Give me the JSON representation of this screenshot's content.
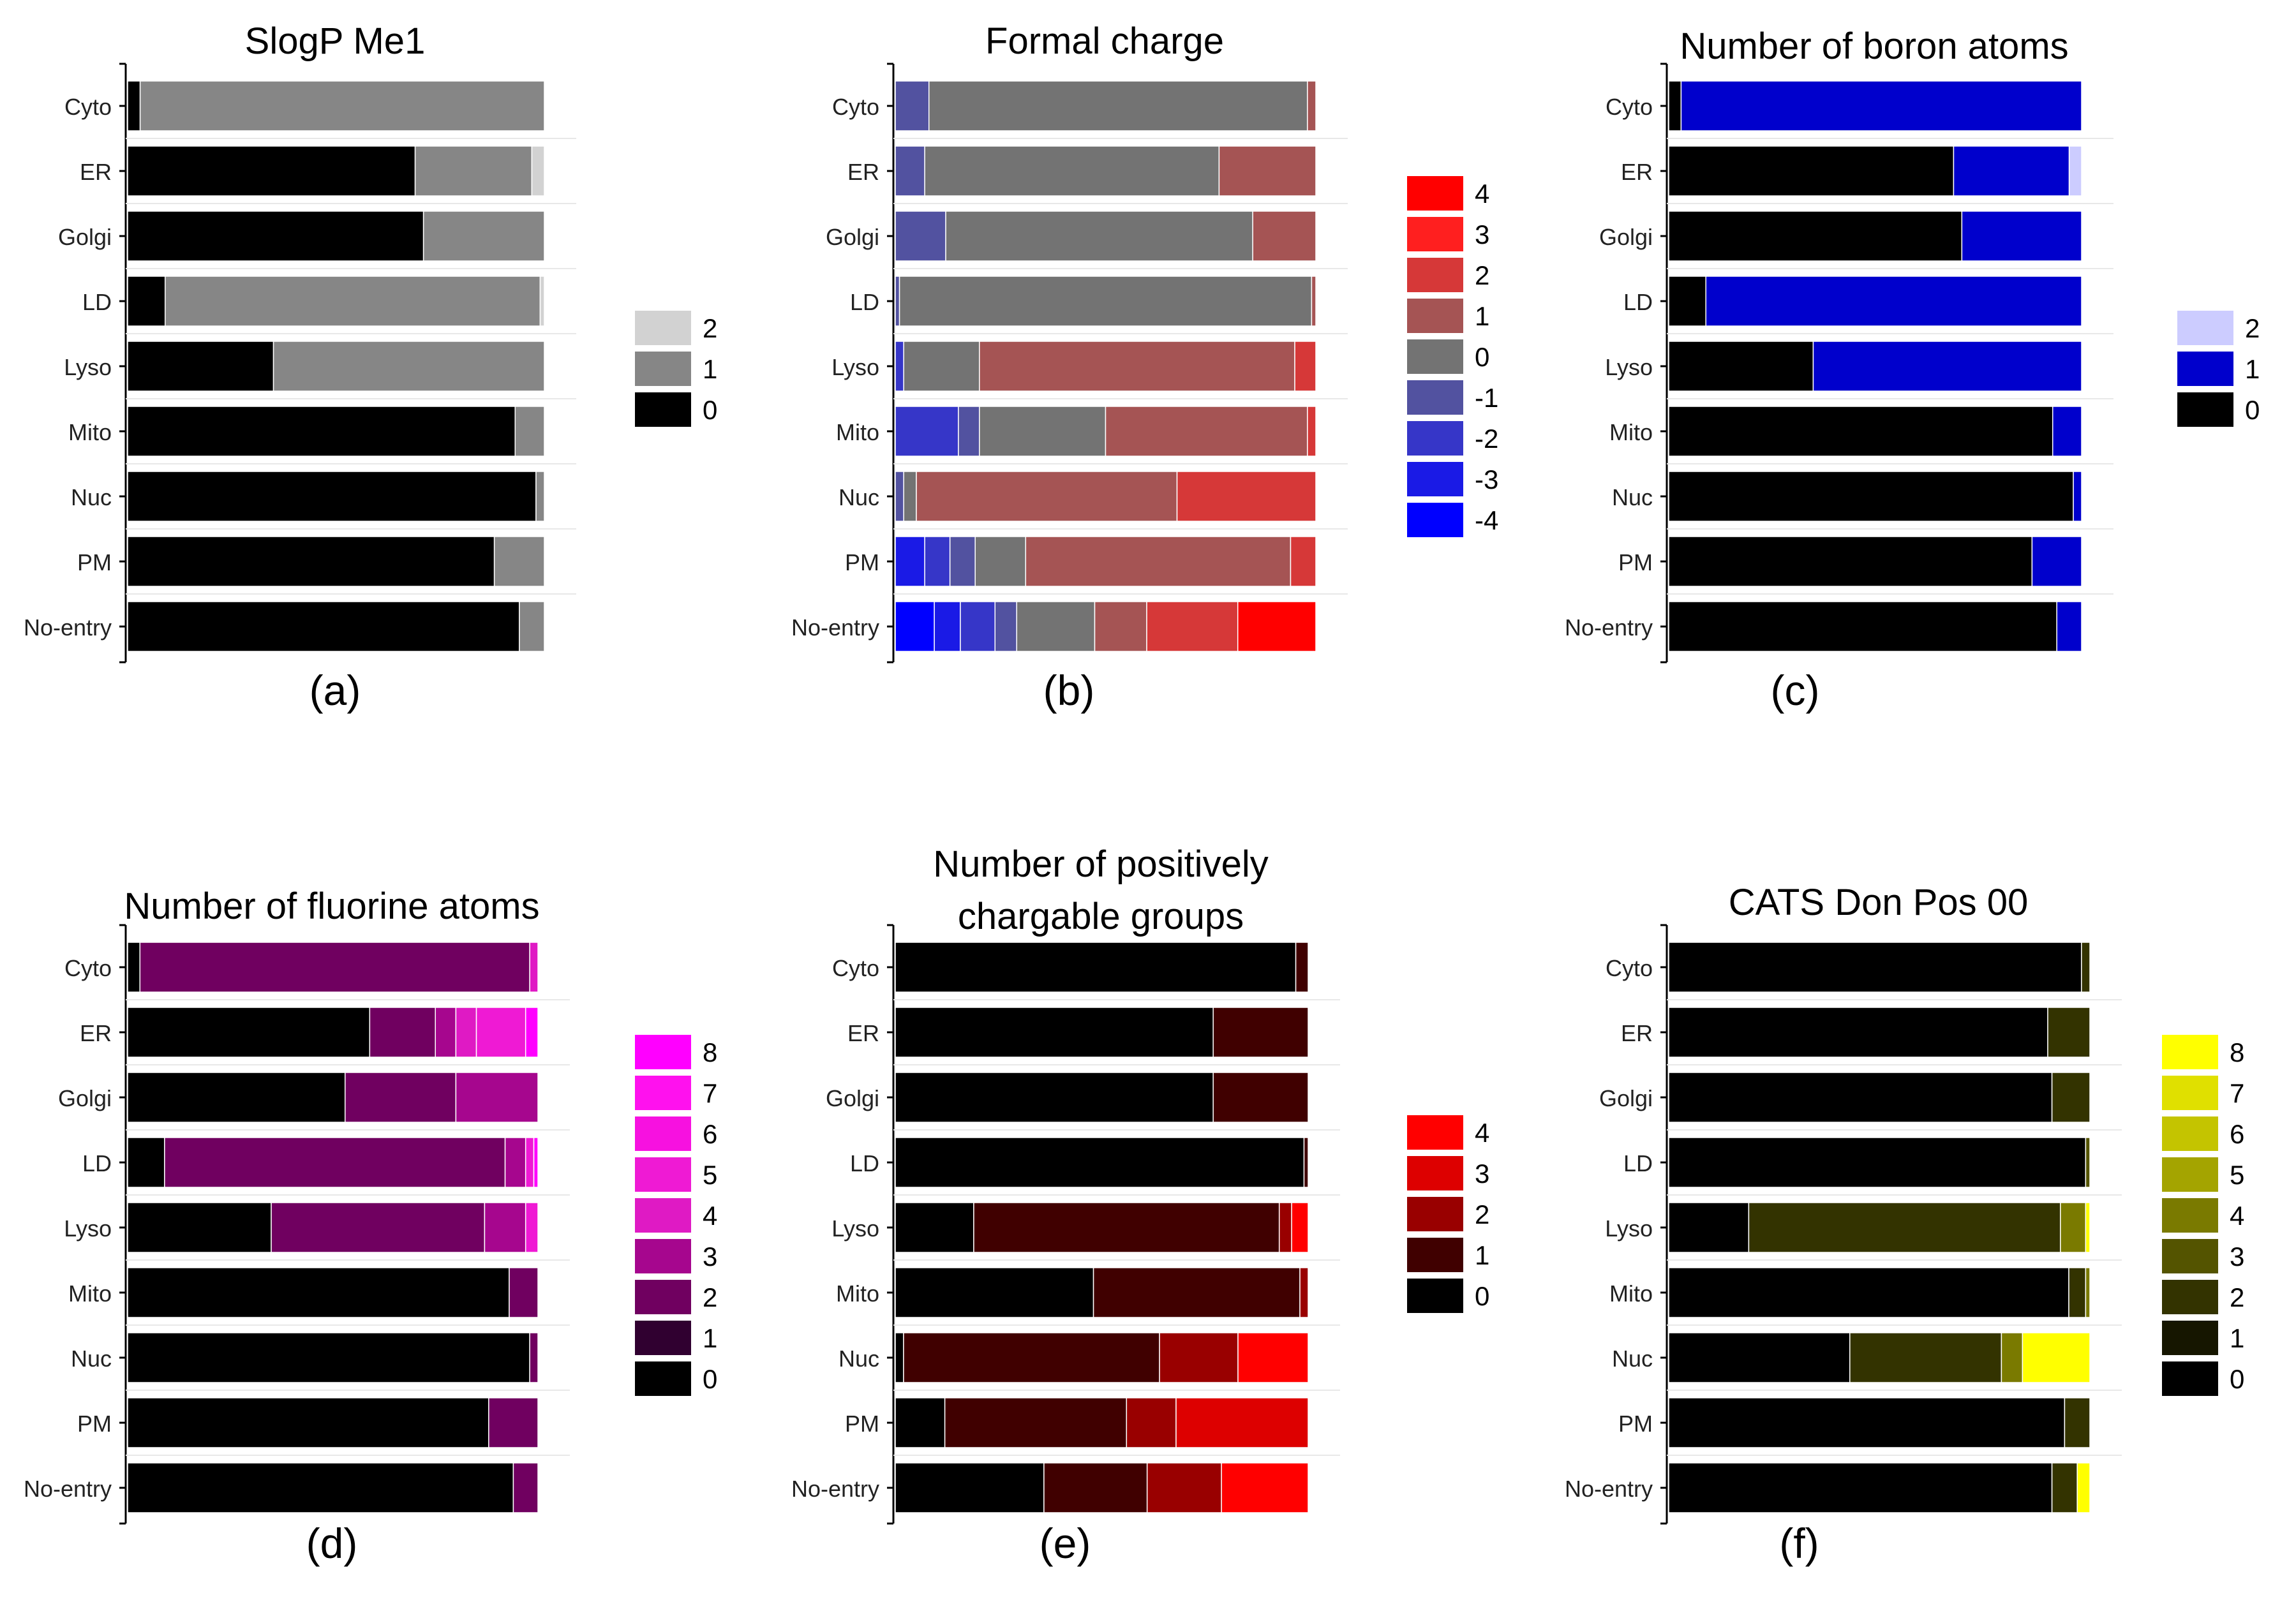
{
  "chart_data": [
    {
      "type": "bar",
      "stacked": true,
      "orientation": "horizontal",
      "title": "SlogP Me1",
      "caption": "(a)",
      "categories": [
        "Cyto",
        "ER",
        "Golgi",
        "LD",
        "Lyso",
        "Mito",
        "Nuc",
        "PM",
        "No-entry"
      ],
      "segments": [
        [
          [
            0,
            0.03
          ],
          [
            1,
            0.97
          ]
        ],
        [
          [
            0,
            0.69
          ],
          [
            1,
            0.28
          ],
          [
            2,
            0.03
          ]
        ],
        [
          [
            0,
            0.71
          ],
          [
            1,
            0.29
          ]
        ],
        [
          [
            0,
            0.09
          ],
          [
            1,
            0.9
          ],
          [
            2,
            0.01
          ]
        ],
        [
          [
            0,
            0.35
          ],
          [
            1,
            0.65
          ]
        ],
        [
          [
            0,
            0.93
          ],
          [
            1,
            0.07
          ]
        ],
        [
          [
            0,
            0.98
          ],
          [
            1,
            0.02
          ]
        ],
        [
          [
            0,
            0.88
          ],
          [
            1,
            0.12
          ]
        ],
        [
          [
            0,
            0.94
          ],
          [
            1,
            0.06
          ]
        ]
      ],
      "legend": [
        {
          "label": "2",
          "color": "#d2d2d2"
        },
        {
          "label": "1",
          "color": "#868686"
        },
        {
          "label": "0",
          "color": "#000000"
        }
      ]
    },
    {
      "type": "bar",
      "stacked": true,
      "orientation": "horizontal",
      "title": "Formal charge",
      "caption": "(b)",
      "categories": [
        "Cyto",
        "ER",
        "Golgi",
        "LD",
        "Lyso",
        "Mito",
        "Nuc",
        "PM",
        "No-entry"
      ],
      "segments": [
        [
          [
            -1,
            0.08
          ],
          [
            0,
            0.9
          ],
          [
            1,
            0.02
          ]
        ],
        [
          [
            -1,
            0.07
          ],
          [
            0,
            0.7
          ],
          [
            1,
            0.23
          ]
        ],
        [
          [
            -1,
            0.12
          ],
          [
            0,
            0.73
          ],
          [
            1,
            0.15
          ]
        ],
        [
          [
            -1,
            0.01
          ],
          [
            0,
            0.98
          ],
          [
            1,
            0.01
          ]
        ],
        [
          [
            -2,
            0.02
          ],
          [
            0,
            0.18
          ],
          [
            1,
            0.75
          ],
          [
            2,
            0.05
          ]
        ],
        [
          [
            -2,
            0.15
          ],
          [
            -1,
            0.05
          ],
          [
            0,
            0.3
          ],
          [
            1,
            0.48
          ],
          [
            2,
            0.02
          ]
        ],
        [
          [
            -1,
            0.02
          ],
          [
            0,
            0.03
          ],
          [
            1,
            0.62
          ],
          [
            2,
            0.33
          ]
        ],
        [
          [
            -3,
            0.07
          ],
          [
            -2,
            0.06
          ],
          [
            -1,
            0.06
          ],
          [
            0,
            0.12
          ],
          [
            1,
            0.63
          ],
          [
            2,
            0.06
          ]
        ],
        [
          [
            -4,
            0.09
          ],
          [
            -3,
            0.06
          ],
          [
            -2,
            0.08
          ],
          [
            -1,
            0.05
          ],
          [
            0,
            0.18
          ],
          [
            1,
            0.12
          ],
          [
            2,
            0.21
          ],
          [
            4,
            0.18
          ]
        ]
      ],
      "legend": [
        {
          "label": "4",
          "color": "#ff0000"
        },
        {
          "label": "3",
          "color": "#ff1f1f"
        },
        {
          "label": "2",
          "color": "#d63838"
        },
        {
          "label": "1",
          "color": "#a55454"
        },
        {
          "label": "0",
          "color": "#737373"
        },
        {
          "label": "-1",
          "color": "#5252a0"
        },
        {
          "label": "-2",
          "color": "#3636c8"
        },
        {
          "label": "-3",
          "color": "#1a1ae6"
        },
        {
          "label": "-4",
          "color": "#0000ff"
        }
      ]
    },
    {
      "type": "bar",
      "stacked": true,
      "orientation": "horizontal",
      "title": "Number of boron atoms",
      "caption": "(c)",
      "categories": [
        "Cyto",
        "ER",
        "Golgi",
        "LD",
        "Lyso",
        "Mito",
        "Nuc",
        "PM",
        "No-entry"
      ],
      "segments": [
        [
          [
            0,
            0.03
          ],
          [
            1,
            0.97
          ]
        ],
        [
          [
            0,
            0.69
          ],
          [
            1,
            0.28
          ],
          [
            2,
            0.03
          ]
        ],
        [
          [
            0,
            0.71
          ],
          [
            1,
            0.29
          ]
        ],
        [
          [
            0,
            0.09
          ],
          [
            1,
            0.91
          ]
        ],
        [
          [
            0,
            0.35
          ],
          [
            1,
            0.65
          ]
        ],
        [
          [
            0,
            0.93
          ],
          [
            1,
            0.07
          ]
        ],
        [
          [
            0,
            0.98
          ],
          [
            1,
            0.02
          ]
        ],
        [
          [
            0,
            0.88
          ],
          [
            1,
            0.12
          ]
        ],
        [
          [
            0,
            0.94
          ],
          [
            1,
            0.06
          ]
        ]
      ],
      "legend": [
        {
          "label": "2",
          "color": "#ccccff"
        },
        {
          "label": "1",
          "color": "#0000cc"
        },
        {
          "label": "0",
          "color": "#000000"
        }
      ]
    },
    {
      "type": "bar",
      "stacked": true,
      "orientation": "horizontal",
      "title": "Number of fluorine atoms",
      "caption": "(d)",
      "categories": [
        "Cyto",
        "ER",
        "Golgi",
        "LD",
        "Lyso",
        "Mito",
        "Nuc",
        "PM",
        "No-entry"
      ],
      "segments": [
        [
          [
            0,
            0.03
          ],
          [
            2,
            0.95
          ],
          [
            4,
            0.02
          ]
        ],
        [
          [
            0,
            0.59
          ],
          [
            2,
            0.16
          ],
          [
            3,
            0.05
          ],
          [
            4,
            0.05
          ],
          [
            5,
            0.12
          ],
          [
            8,
            0.03
          ]
        ],
        [
          [
            0,
            0.53
          ],
          [
            2,
            0.27
          ],
          [
            3,
            0.2
          ]
        ],
        [
          [
            0,
            0.09
          ],
          [
            2,
            0.83
          ],
          [
            3,
            0.05
          ],
          [
            5,
            0.02
          ],
          [
            8,
            0.01
          ]
        ],
        [
          [
            0,
            0.35
          ],
          [
            2,
            0.52
          ],
          [
            3,
            0.1
          ],
          [
            5,
            0.03
          ]
        ],
        [
          [
            0,
            0.93
          ],
          [
            2,
            0.07
          ]
        ],
        [
          [
            0,
            0.98
          ],
          [
            2,
            0.02
          ]
        ],
        [
          [
            0,
            0.88
          ],
          [
            2,
            0.12
          ]
        ],
        [
          [
            0,
            0.94
          ],
          [
            2,
            0.06
          ]
        ]
      ],
      "legend": [
        {
          "label": "8",
          "color": "#ff00ff"
        },
        {
          "label": "7",
          "color": "#ff11ee"
        },
        {
          "label": "6",
          "color": "#f711e0"
        },
        {
          "label": "5",
          "color": "#ef1ad4"
        },
        {
          "label": "4",
          "color": "#df1ac4"
        },
        {
          "label": "3",
          "color": "#a6068e"
        },
        {
          "label": "2",
          "color": "#700060"
        },
        {
          "label": "1",
          "color": "#300030"
        },
        {
          "label": "0",
          "color": "#000000"
        }
      ]
    },
    {
      "type": "bar",
      "stacked": true,
      "orientation": "horizontal",
      "title": [
        "Number of positively",
        "chargable groups"
      ],
      "caption": "(e)",
      "categories": [
        "Cyto",
        "ER",
        "Golgi",
        "LD",
        "Lyso",
        "Mito",
        "Nuc",
        "PM",
        "No-entry"
      ],
      "segments": [
        [
          [
            0,
            0.97
          ],
          [
            1,
            0.03
          ]
        ],
        [
          [
            0,
            0.77
          ],
          [
            1,
            0.23
          ]
        ],
        [
          [
            0,
            0.77
          ],
          [
            1,
            0.23
          ]
        ],
        [
          [
            0,
            0.99
          ],
          [
            1,
            0.01
          ]
        ],
        [
          [
            0,
            0.19
          ],
          [
            1,
            0.74
          ],
          [
            2,
            0.03
          ],
          [
            4,
            0.04
          ]
        ],
        [
          [
            0,
            0.48
          ],
          [
            1,
            0.5
          ],
          [
            2,
            0.02
          ]
        ],
        [
          [
            0,
            0.02
          ],
          [
            1,
            0.62
          ],
          [
            2,
            0.19
          ],
          [
            4,
            0.17
          ]
        ],
        [
          [
            0,
            0.12
          ],
          [
            1,
            0.44
          ],
          [
            2,
            0.12
          ],
          [
            3,
            0.32
          ]
        ],
        [
          [
            0,
            0.36
          ],
          [
            1,
            0.25
          ],
          [
            2,
            0.18
          ],
          [
            4,
            0.21
          ]
        ]
      ],
      "legend": [
        {
          "label": "4",
          "color": "#ff0000"
        },
        {
          "label": "3",
          "color": "#dd0000"
        },
        {
          "label": "2",
          "color": "#990000"
        },
        {
          "label": "1",
          "color": "#400000"
        },
        {
          "label": "0",
          "color": "#000000"
        }
      ]
    },
    {
      "type": "bar",
      "stacked": true,
      "orientation": "horizontal",
      "title": "CATS Don Pos 00",
      "caption": "(f)",
      "categories": [
        "Cyto",
        "ER",
        "Golgi",
        "LD",
        "Lyso",
        "Mito",
        "Nuc",
        "PM",
        "No-entry"
      ],
      "segments": [
        [
          [
            0,
            0.98
          ],
          [
            2,
            0.02
          ]
        ],
        [
          [
            0,
            0.9
          ],
          [
            2,
            0.1
          ]
        ],
        [
          [
            0,
            0.91
          ],
          [
            2,
            0.09
          ]
        ],
        [
          [
            0,
            0.99
          ],
          [
            3,
            0.01
          ]
        ],
        [
          [
            0,
            0.19
          ],
          [
            2,
            0.74
          ],
          [
            4,
            0.06
          ],
          [
            8,
            0.01
          ]
        ],
        [
          [
            0,
            0.95
          ],
          [
            2,
            0.04
          ],
          [
            4,
            0.01
          ]
        ],
        [
          [
            0,
            0.43
          ],
          [
            2,
            0.36
          ],
          [
            4,
            0.05
          ],
          [
            8,
            0.16
          ]
        ],
        [
          [
            0,
            0.94
          ],
          [
            2,
            0.06
          ]
        ],
        [
          [
            0,
            0.91
          ],
          [
            2,
            0.06
          ],
          [
            8,
            0.03
          ]
        ]
      ],
      "legend": [
        {
          "label": "8",
          "color": "#ffff00"
        },
        {
          "label": "7",
          "color": "#e0e000"
        },
        {
          "label": "6",
          "color": "#c4c400"
        },
        {
          "label": "5",
          "color": "#a4a400"
        },
        {
          "label": "4",
          "color": "#7a7a00"
        },
        {
          "label": "3",
          "color": "#545400"
        },
        {
          "label": "2",
          "color": "#333300"
        },
        {
          "label": "1",
          "color": "#161600"
        },
        {
          "label": "0",
          "color": "#000000"
        }
      ]
    }
  ]
}
